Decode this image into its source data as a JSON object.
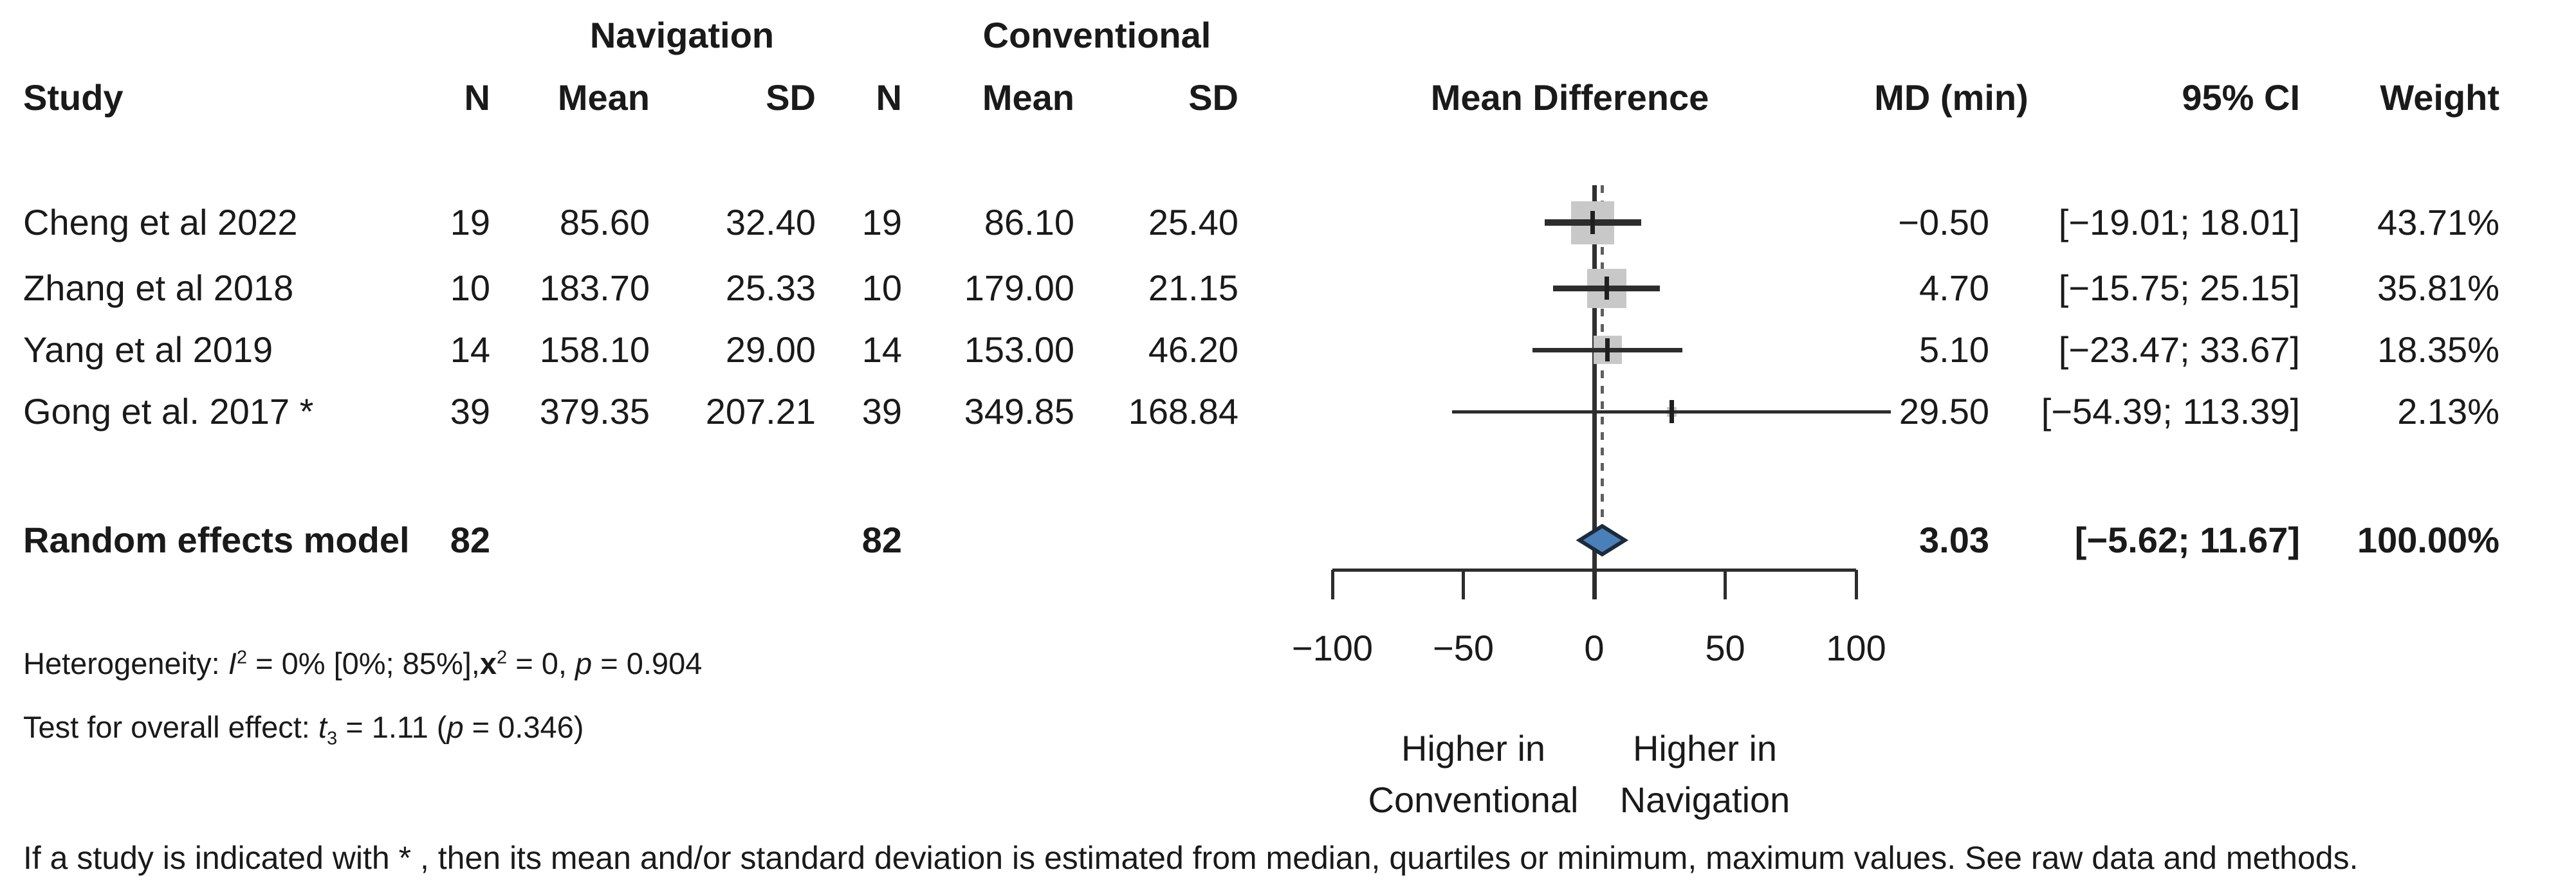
{
  "group_headers": {
    "navigation": "Navigation",
    "conventional": "Conventional"
  },
  "columns": {
    "study": "Study",
    "n": "N",
    "mean": "Mean",
    "sd": "SD",
    "mean_difference": "Mean Difference",
    "md_min": "MD (min)",
    "ci": "95% CI",
    "weight": "Weight"
  },
  "summary_row": {
    "label": "Random effects model",
    "n_nav": "82",
    "n_conv": "82",
    "md_text": "3.03",
    "ci_text": "[−5.62; 11.67]",
    "weight_text": "100.00%"
  },
  "heterogeneity": {
    "prefix": "Heterogeneity: ",
    "i_sym": "I",
    "i_sup": "2",
    "seg1": " = 0% [0%; 85%],",
    "chi_sym": "x",
    "chi_sup": "2",
    "seg2": " = 0, ",
    "p_sym": "p",
    "seg3": " = 0.904"
  },
  "overall_test": {
    "prefix": "Test for overall effect: ",
    "t_sym": "t",
    "t_sub": "3",
    "seg1": " = 1.11 (",
    "p_sym": "p",
    "seg2": " = 0.346)"
  },
  "direction_labels": {
    "left_line1": "Higher in",
    "left_line2": "Conventional",
    "right_line1": "Higher in",
    "right_line2": "Navigation"
  },
  "footnote": "If a study is indicated with * , then its mean and/or standard deviation is estimated from median, quartiles or minimum, maximum values. See raw data and methods.",
  "colors": {
    "text": "#1a1a1a",
    "square": "#c8c8c8",
    "ci_line": "#2d2d2d",
    "zero_line": "#303030",
    "dashed_line": "#5f5f5f",
    "axis": "#2d2d2d",
    "diamond_fill": "#4a80b8",
    "diamond_border": "#1c2b3a"
  },
  "chart_data": {
    "type": "forest",
    "title": "Mean Difference forest plot, Navigation vs Conventional, MD (min)",
    "x_axis": {
      "min": -100,
      "max": 100,
      "ticks": [
        -100,
        -50,
        0,
        50,
        100
      ],
      "tick_labels": [
        "−100",
        "−50",
        "0",
        "50",
        "100"
      ]
    },
    "zero_line_x": 0,
    "pooled_dashed_x": 3.03,
    "studies": [
      {
        "label": "Cheng et al 2022",
        "n_nav": "19",
        "mean_nav": "85.60",
        "sd_nav": "32.40",
        "n_conv": "19",
        "mean_conv": "86.10",
        "sd_conv": "25.40",
        "md": -0.5,
        "ci_lo": -19.01,
        "ci_hi": 18.01,
        "weight_pct": 43.71,
        "md_text": "−0.50",
        "ci_text": "[−19.01; 18.01]",
        "weight_text": "43.71%"
      },
      {
        "label": "Zhang et al 2018",
        "n_nav": "10",
        "mean_nav": "183.70",
        "sd_nav": "25.33",
        "n_conv": "10",
        "mean_conv": "179.00",
        "sd_conv": "21.15",
        "md": 4.7,
        "ci_lo": -15.75,
        "ci_hi": 25.15,
        "weight_pct": 35.81,
        "md_text": "4.70",
        "ci_text": "[−15.75; 25.15]",
        "weight_text": "35.81%"
      },
      {
        "label": "Yang et al 2019",
        "n_nav": "14",
        "mean_nav": "158.10",
        "sd_nav": "29.00",
        "n_conv": "14",
        "mean_conv": "153.00",
        "sd_conv": "46.20",
        "md": 5.1,
        "ci_lo": -23.47,
        "ci_hi": 33.67,
        "weight_pct": 18.35,
        "md_text": "5.10",
        "ci_text": "[−23.47; 33.67]",
        "weight_text": "18.35%"
      },
      {
        "label": "Gong et al. 2017 *",
        "n_nav": "39",
        "mean_nav": "379.35",
        "sd_nav": "207.21",
        "n_conv": "39",
        "mean_conv": "349.85",
        "sd_conv": "168.84",
        "md": 29.5,
        "ci_lo": -54.39,
        "ci_hi": 113.39,
        "weight_pct": 2.13,
        "md_text": "29.50",
        "ci_text": "[−54.39; 113.39]",
        "weight_text": "2.13%"
      }
    ],
    "summary": {
      "label": "Random effects model",
      "n_nav": 82,
      "n_conv": 82,
      "md": 3.03,
      "ci_lo": -5.62,
      "ci_hi": 11.67,
      "weight_pct": 100.0
    }
  }
}
